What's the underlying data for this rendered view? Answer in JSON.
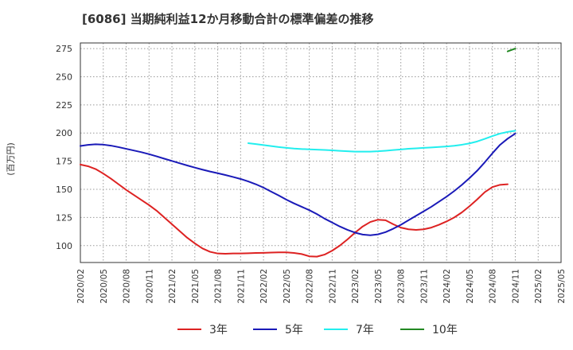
{
  "title": "[6086]  当期純利益12か月移動合計の標準偏差の推移",
  "chart_data": {
    "type": "line",
    "title": "[6086]  当期純利益12か月移動合計の標準偏差の推移",
    "ylabel": "(百万円)",
    "xlabel": "",
    "ylim": [
      85,
      280
    ],
    "yticks": [
      100,
      125,
      150,
      175,
      200,
      225,
      250,
      275
    ],
    "x_ticks": [
      "2020/02",
      "2020/05",
      "2020/08",
      "2020/11",
      "2021/02",
      "2021/05",
      "2021/08",
      "2021/11",
      "2022/02",
      "2022/05",
      "2022/08",
      "2022/11",
      "2023/02",
      "2023/05",
      "2023/08",
      "2023/11",
      "2024/02",
      "2024/05",
      "2024/08",
      "2024/11",
      "2025/02",
      "2025/05"
    ],
    "grid": true,
    "legend_position": "bottom",
    "series": [
      {
        "name": "3年",
        "color": "#dd2222",
        "points": [
          [
            0,
            172
          ],
          [
            1,
            170.5
          ],
          [
            2,
            168
          ],
          [
            3,
            164
          ],
          [
            4,
            159.5
          ],
          [
            5,
            154.5
          ],
          [
            6,
            149.5
          ],
          [
            7,
            145
          ],
          [
            8,
            140.5
          ],
          [
            9,
            136
          ],
          [
            10,
            131
          ],
          [
            11,
            125
          ],
          [
            12,
            119
          ],
          [
            13,
            113
          ],
          [
            14,
            107
          ],
          [
            15,
            102
          ],
          [
            16,
            97.5
          ],
          [
            17,
            94.5
          ],
          [
            18,
            93
          ],
          [
            19,
            92.8
          ],
          [
            20,
            93
          ],
          [
            21,
            93
          ],
          [
            22,
            93.2
          ],
          [
            23,
            93.5
          ],
          [
            24,
            93.6
          ],
          [
            25,
            93.8
          ],
          [
            26,
            94
          ],
          [
            27,
            94
          ],
          [
            28,
            93.5
          ],
          [
            29,
            92.5
          ],
          [
            30,
            90.5
          ],
          [
            31,
            90.2
          ],
          [
            32,
            92
          ],
          [
            33,
            95.5
          ],
          [
            34,
            100
          ],
          [
            35,
            105.5
          ],
          [
            36,
            111.5
          ],
          [
            37,
            117
          ],
          [
            38,
            121
          ],
          [
            39,
            123
          ],
          [
            40,
            122.5
          ],
          [
            41,
            119
          ],
          [
            42,
            116
          ],
          [
            43,
            114.5
          ],
          [
            44,
            114
          ],
          [
            45,
            114.5
          ],
          [
            46,
            116
          ],
          [
            47,
            118.5
          ],
          [
            48,
            121.5
          ],
          [
            49,
            125
          ],
          [
            50,
            129.5
          ],
          [
            51,
            135
          ],
          [
            52,
            141
          ],
          [
            53,
            147.5
          ],
          [
            54,
            152
          ],
          [
            55,
            154
          ],
          [
            56,
            154.5
          ]
        ]
      },
      {
        "name": "5年",
        "color": "#1a1ab8",
        "points": [
          [
            0,
            188.5
          ],
          [
            1,
            189.5
          ],
          [
            2,
            190
          ],
          [
            3,
            189.7
          ],
          [
            4,
            188.8
          ],
          [
            5,
            187.5
          ],
          [
            6,
            186
          ],
          [
            7,
            184.5
          ],
          [
            8,
            183
          ],
          [
            9,
            181.2
          ],
          [
            10,
            179.3
          ],
          [
            11,
            177.2
          ],
          [
            12,
            175.2
          ],
          [
            13,
            173.2
          ],
          [
            14,
            171.2
          ],
          [
            15,
            169.3
          ],
          [
            16,
            167.5
          ],
          [
            17,
            165.8
          ],
          [
            18,
            164.3
          ],
          [
            19,
            162.7
          ],
          [
            20,
            161
          ],
          [
            21,
            159.2
          ],
          [
            22,
            157
          ],
          [
            23,
            154.5
          ],
          [
            24,
            151.5
          ],
          [
            25,
            148
          ],
          [
            26,
            144.5
          ],
          [
            27,
            140.8
          ],
          [
            28,
            137.5
          ],
          [
            29,
            134.5
          ],
          [
            30,
            131.5
          ],
          [
            31,
            128
          ],
          [
            32,
            124
          ],
          [
            33,
            120.5
          ],
          [
            34,
            117
          ],
          [
            35,
            114
          ],
          [
            36,
            111.5
          ],
          [
            37,
            109.8
          ],
          [
            38,
            109.2
          ],
          [
            39,
            110
          ],
          [
            40,
            112
          ],
          [
            41,
            115
          ],
          [
            42,
            118.5
          ],
          [
            43,
            122.5
          ],
          [
            44,
            126.5
          ],
          [
            45,
            130.5
          ],
          [
            46,
            134.5
          ],
          [
            47,
            139
          ],
          [
            48,
            143.5
          ],
          [
            49,
            148.5
          ],
          [
            50,
            154
          ],
          [
            51,
            160
          ],
          [
            52,
            166.5
          ],
          [
            53,
            174
          ],
          [
            54,
            182
          ],
          [
            55,
            189.5
          ],
          [
            56,
            195
          ],
          [
            57,
            199.5
          ]
        ]
      },
      {
        "name": "7年",
        "color": "#22eeee",
        "points": [
          [
            22,
            191
          ],
          [
            23,
            190.2
          ],
          [
            24,
            189.3
          ],
          [
            25,
            188.4
          ],
          [
            26,
            187.5
          ],
          [
            27,
            186.8
          ],
          [
            28,
            186.2
          ],
          [
            29,
            185.8
          ],
          [
            30,
            185.5
          ],
          [
            31,
            185.2
          ],
          [
            32,
            185
          ],
          [
            33,
            184.6
          ],
          [
            34,
            184.2
          ],
          [
            35,
            183.8
          ],
          [
            36,
            183.5
          ],
          [
            37,
            183.5
          ],
          [
            38,
            183.5
          ],
          [
            39,
            183.8
          ],
          [
            40,
            184.3
          ],
          [
            41,
            184.9
          ],
          [
            42,
            185.4
          ],
          [
            43,
            186
          ],
          [
            44,
            186.4
          ],
          [
            45,
            186.8
          ],
          [
            46,
            187.2
          ],
          [
            47,
            187.6
          ],
          [
            48,
            188.1
          ],
          [
            49,
            188.7
          ],
          [
            50,
            189.6
          ],
          [
            51,
            190.8
          ],
          [
            52,
            192.5
          ],
          [
            53,
            194.8
          ],
          [
            54,
            197.3
          ],
          [
            55,
            199.5
          ],
          [
            56,
            201
          ],
          [
            57,
            202
          ]
        ]
      },
      {
        "name": "10年",
        "color": "#228822",
        "points": [
          [
            56,
            272.5
          ],
          [
            57,
            275
          ]
        ]
      }
    ]
  }
}
